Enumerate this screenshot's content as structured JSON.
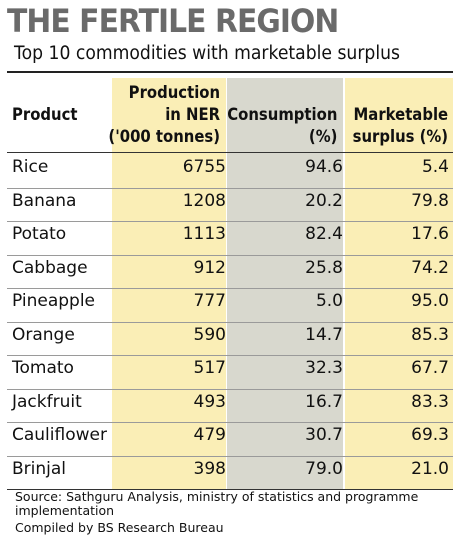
{
  "title": "THE FERTILE REGION",
  "subtitle": "Top 10 commodities with marketable surplus",
  "chart_data": {
    "type": "table",
    "headers": {
      "product": "Product",
      "production_line1": "Production",
      "production_line2": "in NER",
      "production_line3": "('000 tonnes)",
      "consumption_line1": "Consumption",
      "consumption_line2": "(%)",
      "surplus_line1": "Marketable",
      "surplus_line2": "surplus (%)"
    },
    "rows": [
      {
        "product": "Rice",
        "production": "6755",
        "consumption": "94.6",
        "surplus": "5.4"
      },
      {
        "product": "Banana",
        "production": "1208",
        "consumption": "20.2",
        "surplus": "79.8"
      },
      {
        "product": "Potato",
        "production": "1113",
        "consumption": "82.4",
        "surplus": "17.6"
      },
      {
        "product": "Cabbage",
        "production": "912",
        "consumption": "25.8",
        "surplus": "74.2"
      },
      {
        "product": "Pineapple",
        "production": "777",
        "consumption": "5.0",
        "surplus": "95.0"
      },
      {
        "product": "Orange",
        "production": "590",
        "consumption": "14.7",
        "surplus": "85.3"
      },
      {
        "product": "Tomato",
        "production": "517",
        "consumption": "32.3",
        "surplus": "67.7"
      },
      {
        "product": "Jackfruit",
        "production": "493",
        "consumption": "16.7",
        "surplus": "83.3"
      },
      {
        "product": "Cauliflower",
        "production": "479",
        "consumption": "30.7",
        "surplus": "69.3"
      },
      {
        "product": "Brinjal",
        "production": "398",
        "consumption": "79.0",
        "surplus": "21.0"
      }
    ]
  },
  "footer": {
    "source": "Source: Sathguru Analysis, ministry of statistics and programme implementation",
    "credit": "Compiled by BS Research Bureau"
  }
}
